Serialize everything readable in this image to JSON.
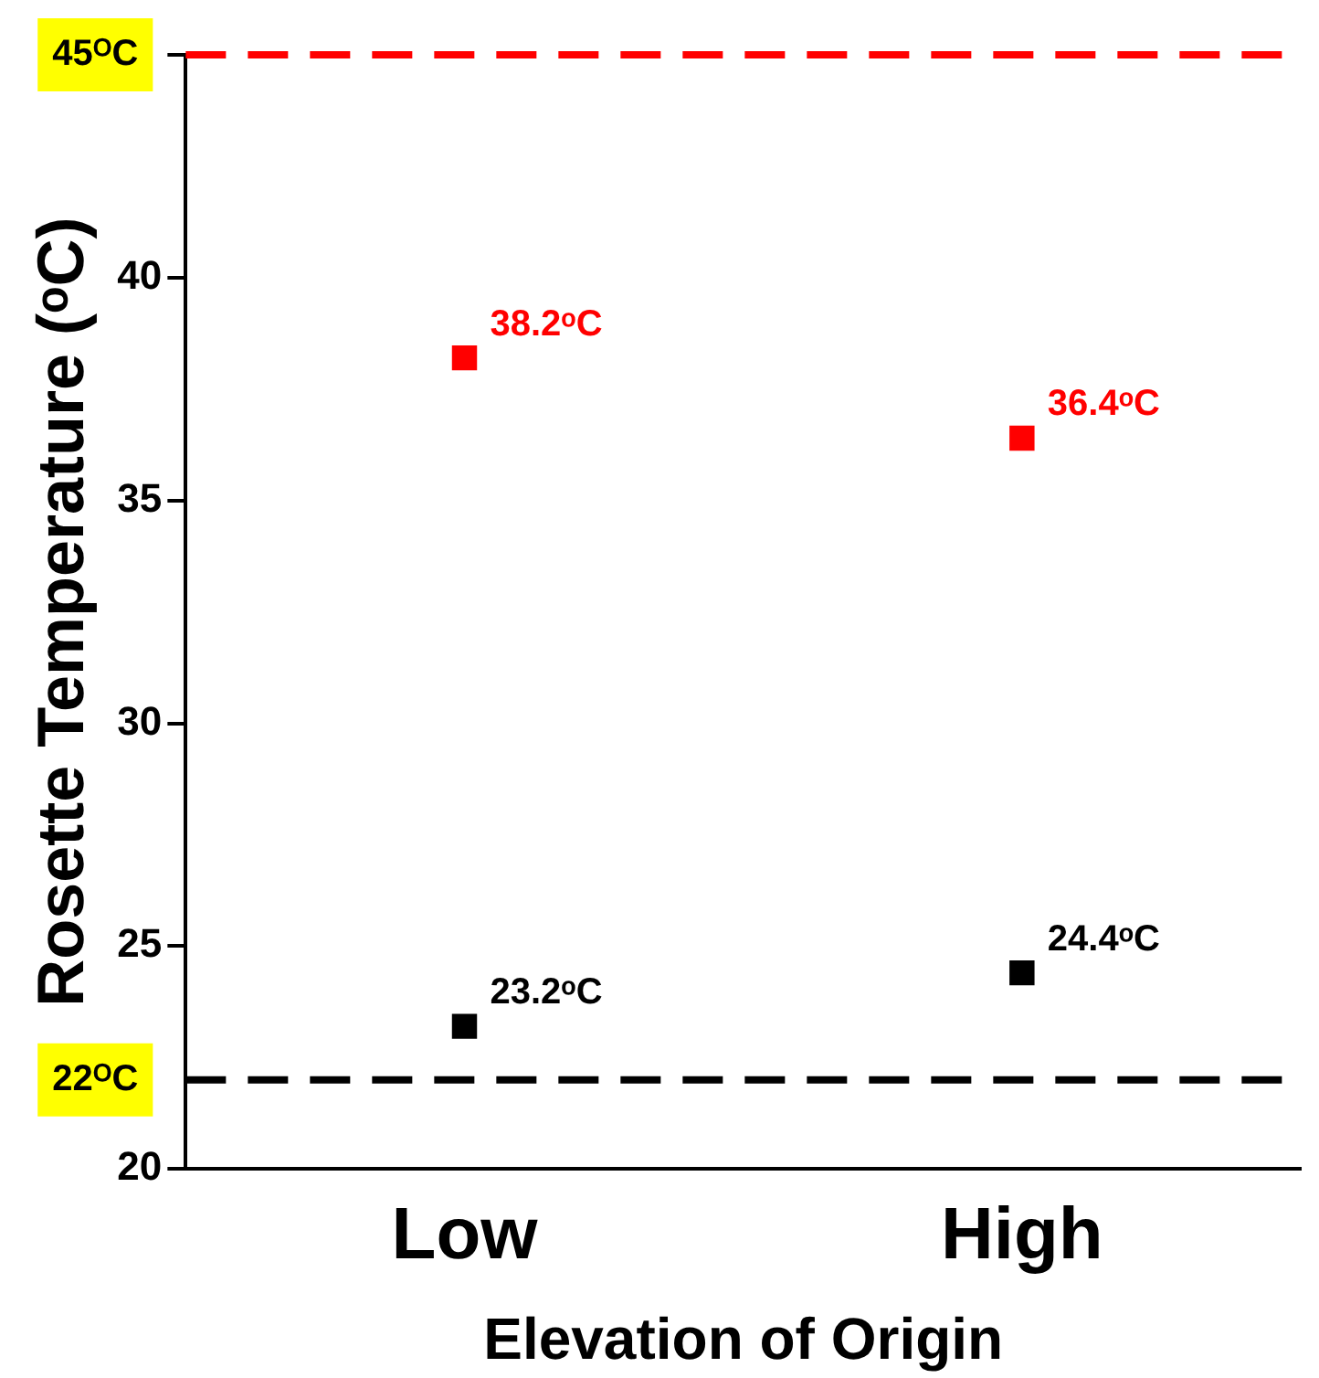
{
  "chart_data": {
    "type": "scatter",
    "xlabel": "Elevation of Origin",
    "ylabel": "Rosette Temperature (ᵒC)",
    "categories": [
      "Low",
      "High"
    ],
    "series": [
      {
        "color": "#ff0000",
        "values": [
          38.2,
          36.4
        ],
        "value_labels": [
          "38.2ᵒC",
          "36.4ᵒC"
        ]
      },
      {
        "color": "#000000",
        "values": [
          23.2,
          24.4
        ],
        "value_labels": [
          "23.2ᵒC",
          "24.4ᵒC"
        ]
      }
    ],
    "ylim": [
      20,
      45
    ],
    "yticks": [
      20,
      25,
      30,
      35,
      40,
      {
        "value": 45,
        "label": null
      }
    ],
    "ref_lines": [
      {
        "axis": "y",
        "value": 45,
        "label": "45ᴼC",
        "color": "#ff0000",
        "line_style": "dashed"
      },
      {
        "axis": "y",
        "value": 22,
        "label": "22ᴼC",
        "color": "#000000",
        "line_style": "dashed"
      }
    ],
    "marker": "square",
    "grid": false,
    "legend": false
  }
}
